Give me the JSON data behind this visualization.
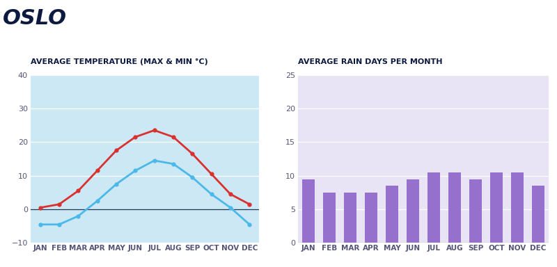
{
  "title": "OSLO",
  "months": [
    "JAN",
    "FEB",
    "MAR",
    "APR",
    "MAY",
    "JUN",
    "JUL",
    "AUG",
    "SEP",
    "OCT",
    "NOV",
    "DEC"
  ],
  "temp_max": [
    0.5,
    1.5,
    5.5,
    11.5,
    17.5,
    21.5,
    23.5,
    21.5,
    16.5,
    10.5,
    4.5,
    1.5
  ],
  "temp_min": [
    -4.5,
    -4.5,
    -2.0,
    2.5,
    7.5,
    11.5,
    14.5,
    13.5,
    9.5,
    4.5,
    0.5,
    -4.5
  ],
  "rain_days": [
    9.5,
    7.5,
    7.5,
    7.5,
    8.5,
    9.5,
    10.5,
    10.5,
    9.5,
    10.5,
    10.5,
    8.5
  ],
  "temp_title": "AVERAGE TEMPERATURE (MAX & MIN °C)",
  "rain_title": "AVERAGE RAIN DAYS PER MONTH",
  "temp_bg": "#cce8f4",
  "rain_bg": "#e8e3f5",
  "temp_line_max_color": "#d93030",
  "temp_line_min_color": "#4ab8e8",
  "rain_bar_color": "#9570cc",
  "title_color": "#0d1a40",
  "label_color": "#555577",
  "temp_ylim": [
    -10,
    40
  ],
  "rain_ylim": [
    0,
    25
  ],
  "temp_yticks": [
    -10,
    0,
    10,
    20,
    30,
    40
  ],
  "rain_yticks": [
    0,
    5,
    10,
    15,
    20,
    25
  ],
  "page_bg": "#ffffff",
  "grid_color": "#ffffff",
  "zero_line_color": "#223355"
}
